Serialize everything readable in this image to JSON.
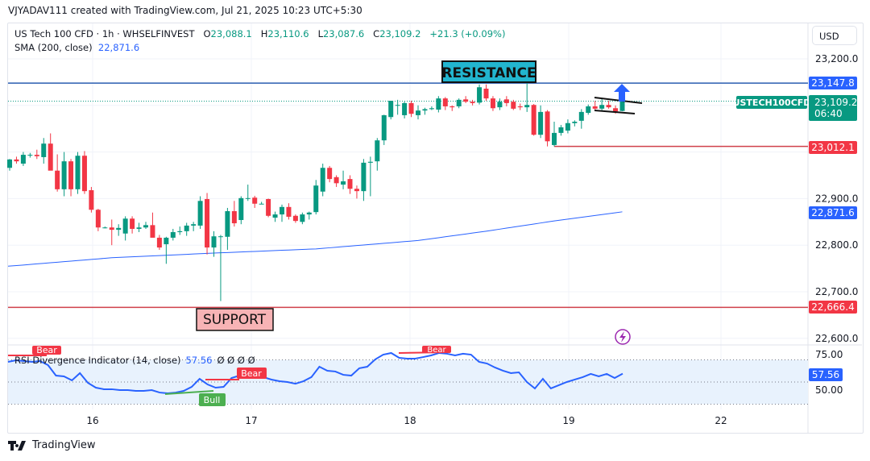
{
  "header": {
    "credit": "VJYADAV111 created with TradingView.com, Jul 21, 2025 10:23 UTC+5:30"
  },
  "legend": {
    "symbol": "US Tech 100 CFD · 1h · WHSELFINVEST",
    "o_label": "O",
    "o": "23,088.1",
    "h_label": "H",
    "h": "23,110.6",
    "l_label": "L",
    "l": "23,087.6",
    "c_label": "C",
    "c": "23,109.2",
    "change": "+21.3 (+0.09%)",
    "sma_label": "SMA (200, close)",
    "sma_value": "22,871.6"
  },
  "currency": "USD",
  "footer": {
    "brand": "TradingView"
  },
  "colors": {
    "up": "#089981",
    "down": "#f23645",
    "sma": "#2962ff",
    "resistance_line": "#2a5db0",
    "support_line": "#d0404a",
    "rsi": "#2962ff",
    "rsi_band": "#e8f2fd",
    "resistance_label_bg": "#22b5cf",
    "support_label_bg": "#f7b3b5"
  },
  "annotations": {
    "resistance": "RESISTANCE",
    "support": "SUPPORT",
    "ticker_tag": "USTECH100CFD",
    "countdown": "06:40"
  },
  "price_axis": {
    "ticks": [
      "23,200.0",
      "22,900.0",
      "22,800.0",
      "22,700.0",
      "22,600.0"
    ],
    "tick_values": [
      23200,
      22900,
      22800,
      22700,
      22600
    ],
    "resistance": "23,147.8",
    "current": "23,109.2",
    "level": "23,012.1",
    "sma": "22,871.6",
    "support": "22,666.4"
  },
  "time_axis": {
    "labels": [
      "16",
      "17",
      "18",
      "19",
      "22"
    ]
  },
  "rsi": {
    "label": "RSI Divergence Indicator (14, close)",
    "value": "57.56",
    "extras": "Ø  Ø  Ø  Ø",
    "ticks": [
      "75.00",
      "50.00"
    ],
    "bear": "Bear",
    "bull": "Bull"
  },
  "chart_data": {
    "type": "candlestick",
    "ylim": [
      22580,
      23230
    ],
    "levels": {
      "resistance": 23147.8,
      "support": 22666.4,
      "level": 23012.1,
      "current": 23109.2
    },
    "candles": [
      [
        22966,
        22985,
        22960,
        22984
      ],
      [
        22984,
        22990,
        22975,
        22980
      ],
      [
        22975,
        23000,
        22970,
        22994
      ],
      [
        22994,
        22998,
        22988,
        22994
      ],
      [
        22994,
        23005,
        22985,
        22991
      ],
      [
        22989,
        23030,
        22975,
        23018
      ],
      [
        23018,
        23040,
        22965,
        22960
      ],
      [
        22960,
        22995,
        22915,
        22920
      ],
      [
        22920,
        23000,
        22905,
        22980
      ],
      [
        22980,
        22985,
        22905,
        22920
      ],
      [
        22920,
        23000,
        22910,
        22992
      ],
      [
        22992,
        23002,
        22910,
        22916
      ],
      [
        22918,
        22925,
        22870,
        22876
      ],
      [
        22876,
        22878,
        22830,
        22838
      ],
      [
        22838,
        22840,
        22836,
        22838
      ],
      [
        22838,
        22855,
        22800,
        22833
      ],
      [
        22833,
        22845,
        22820,
        22837
      ],
      [
        22825,
        22862,
        22810,
        22857
      ],
      [
        22857,
        22862,
        22825,
        22835
      ],
      [
        22835,
        22848,
        22828,
        22838
      ],
      [
        22838,
        22850,
        22835,
        22843
      ],
      [
        22843,
        22870,
        22820,
        22816
      ],
      [
        22816,
        22822,
        22790,
        22795
      ],
      [
        22802,
        22818,
        22760,
        22816
      ],
      [
        22816,
        22835,
        22810,
        22828
      ],
      [
        22828,
        22840,
        22822,
        22830
      ],
      [
        22830,
        22848,
        22820,
        22842
      ],
      [
        22842,
        22850,
        22830,
        22845
      ],
      [
        22842,
        22905,
        22835,
        22895
      ],
      [
        22899,
        22912,
        22780,
        22795
      ],
      [
        22795,
        22830,
        22775,
        22819
      ],
      [
        22819,
        22822,
        22680,
        22819
      ],
      [
        22818,
        22880,
        22790,
        22873
      ],
      [
        22873,
        22895,
        22840,
        22847
      ],
      [
        22854,
        22905,
        22845,
        22901
      ],
      [
        22901,
        22930,
        22895,
        22901
      ],
      [
        22902,
        22906,
        22880,
        22889
      ],
      [
        22889,
        22893,
        22888,
        22889
      ],
      [
        22899,
        22900,
        22860,
        22863
      ],
      [
        22859,
        22872,
        22850,
        22866
      ],
      [
        22866,
        22887,
        22850,
        22882
      ],
      [
        22882,
        22890,
        22855,
        22861
      ],
      [
        22863,
        22866,
        22848,
        22852
      ],
      [
        22850,
        22870,
        22845,
        22866
      ],
      [
        22866,
        22872,
        22855,
        22870
      ],
      [
        22871,
        22940,
        22866,
        22928
      ],
      [
        22915,
        22975,
        22905,
        22966
      ],
      [
        22966,
        22970,
        22935,
        22942
      ],
      [
        22946,
        22950,
        22925,
        22933
      ],
      [
        22930,
        22960,
        22920,
        22937
      ],
      [
        22942,
        22950,
        22910,
        22921
      ],
      [
        22921,
        22928,
        22900,
        22916
      ],
      [
        22916,
        22985,
        22895,
        22977
      ],
      [
        22977,
        22990,
        22905,
        22979
      ],
      [
        22980,
        23030,
        22960,
        23025
      ],
      [
        23025,
        23080,
        23015,
        23079
      ],
      [
        23075,
        23110,
        23070,
        23110
      ],
      [
        23100,
        23112,
        23080,
        23101
      ],
      [
        23079,
        23108,
        23072,
        23105
      ],
      [
        23105,
        23110,
        23075,
        23082
      ],
      [
        23079,
        23100,
        23070,
        23089
      ],
      [
        23089,
        23095,
        23080,
        23092
      ],
      [
        23092,
        23098,
        23090,
        23094
      ],
      [
        23091,
        23120,
        23085,
        23115
      ],
      [
        23115,
        23118,
        23090,
        23098
      ],
      [
        23098,
        23100,
        23088,
        23096
      ],
      [
        23098,
        23115,
        23094,
        23112
      ],
      [
        23113,
        23120,
        23105,
        23108
      ],
      [
        23108,
        23112,
        23100,
        23105
      ],
      [
        23106,
        23145,
        23102,
        23139
      ],
      [
        23136,
        23145,
        23110,
        23115
      ],
      [
        23115,
        23120,
        23088,
        23094
      ],
      [
        23096,
        23115,
        23090,
        23108
      ],
      [
        23113,
        23120,
        23098,
        23105
      ],
      [
        23108,
        23112,
        23090,
        23093
      ],
      [
        23098,
        23104,
        23090,
        23096
      ],
      [
        23096,
        23160,
        23086,
        23101
      ],
      [
        23101,
        23103,
        23035,
        23037
      ],
      [
        23037,
        23100,
        23030,
        23086
      ],
      [
        23087,
        23090,
        23012,
        23023
      ],
      [
        23015,
        23065,
        23012,
        23041
      ],
      [
        23041,
        23058,
        23035,
        23053
      ],
      [
        23046,
        23070,
        23040,
        23062
      ],
      [
        23062,
        23068,
        23055,
        23065
      ],
      [
        23067,
        23092,
        23050,
        23086
      ],
      [
        23084,
        23102,
        23080,
        23098
      ],
      [
        23098,
        23110,
        23090,
        23093
      ],
      [
        23093,
        23115,
        23088,
        23101
      ],
      [
        23101,
        23110,
        23093,
        23096
      ],
      [
        23094,
        23100,
        23082,
        23087
      ],
      [
        23088.1,
        23110.6,
        23087.6,
        23109.2
      ]
    ],
    "sma": [
      [
        0,
        22755
      ],
      [
        15,
        22773
      ],
      [
        30,
        22783
      ],
      [
        45,
        22792
      ],
      [
        60,
        22810
      ],
      [
        70,
        22830
      ],
      [
        80,
        22852
      ],
      [
        90,
        22871.6
      ]
    ],
    "rsi_ylim": [
      30,
      70
    ],
    "rsi_values": [
      68.2,
      69.6,
      68.9,
      68.2,
      68.9,
      65.3,
      55.8,
      55.1,
      51.5,
      58,
      49.3,
      44.9,
      43.5,
      43.5,
      42.7,
      42.7,
      42,
      42,
      42.7,
      40.5,
      39.8,
      40.5,
      42,
      45.6,
      52.9,
      47.8,
      44.9,
      45.6,
      53.6,
      55.8,
      56.5,
      55.8,
      54.4,
      52.2,
      50.7,
      50,
      48.5,
      50.7,
      54.4,
      63.8,
      60.2,
      59.5,
      56.5,
      55.8,
      62.4,
      63.8,
      70.4,
      74.7,
      76.2,
      71.8,
      71.1,
      71.1,
      72.5,
      74,
      76.2,
      75.5,
      74,
      75.5,
      74.7,
      68.2,
      66.7,
      63.1,
      60.2,
      58,
      58.7,
      50,
      44.2,
      52.9,
      44.2,
      47.1,
      50,
      52.2,
      54.4,
      57.3,
      55.1,
      57.3,
      53.6,
      57.56
    ]
  }
}
